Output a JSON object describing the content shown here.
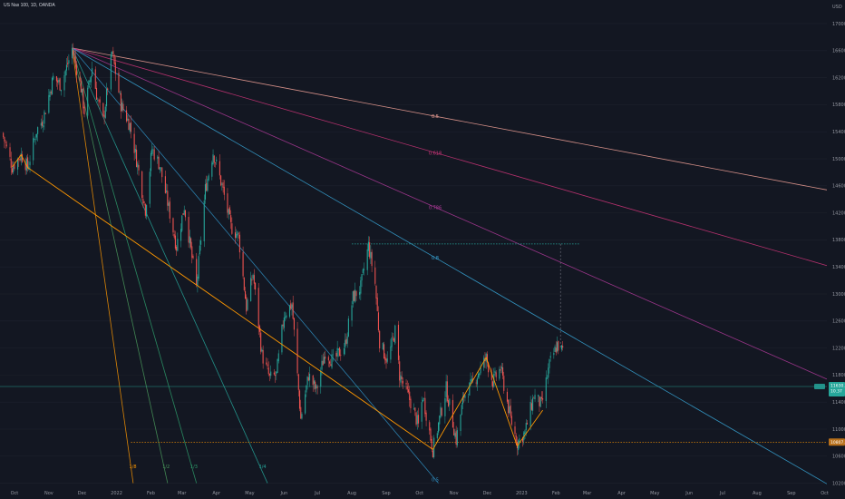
{
  "header": {
    "symbol_title": "US Nas 100, 1D, OANDA"
  },
  "currency": "USD",
  "colors": {
    "background": "#131722",
    "bull": "#26a69a",
    "bear": "#ef5350",
    "zigzag": "#ff9800",
    "price_tag": "#26a69a",
    "level_tag": "#b8701b",
    "grid": "#1e222d"
  },
  "price_tag": {
    "value": "11630.2",
    "sub": "10.37"
  },
  "level_tag": {
    "value": "10807.6"
  },
  "fan_labels": [
    "0.5",
    "0.618",
    "0.786",
    "0.8",
    "0.5",
    "1/4",
    "1/3",
    "1/2",
    "1/8"
  ],
  "chart_data": {
    "type": "candlestick",
    "title": "US Nas 100, 1D, OANDA",
    "y_axis": {
      "ticks": [
        17000,
        16600,
        16200,
        15800,
        15400,
        15000,
        14600,
        14200,
        13800,
        13400,
        13000,
        12600,
        12200,
        11800,
        11400,
        11000,
        10600,
        10200
      ],
      "labels": [
        "17000.0",
        "16600.0",
        "16200.0",
        "15800.0",
        "15400.0",
        "15000.0",
        "14600.0",
        "14200.0",
        "13800.0",
        "13400.0",
        "13000.0",
        "12600.0",
        "12200.0",
        "11800.0",
        "11400.0",
        "11000.0",
        "10600.0",
        "10200.0"
      ],
      "range": [
        10100,
        17350
      ],
      "unit": "USD"
    },
    "x_axis": {
      "labels": [
        "Oct",
        "Nov",
        "Dec",
        "2022",
        "Feb",
        "Mar",
        "Apr",
        "May",
        "Jun",
        "Jul",
        "Aug",
        "Sep",
        "Oct",
        "Nov",
        "Dec",
        "2023",
        "Feb",
        "Mar",
        "Apr",
        "May",
        "Jun",
        "Jul",
        "Aug",
        "Sep",
        "Oct"
      ],
      "range": [
        "2021-09-18",
        "2023-10-03"
      ]
    },
    "price_path": [
      [
        "2021-09-20",
        15380
      ],
      [
        "2021-09-29",
        14880
      ],
      [
        "2021-10-07",
        15060
      ],
      [
        "2021-10-13",
        14870
      ],
      [
        "2021-10-21",
        15420
      ],
      [
        "2021-10-27",
        15600
      ],
      [
        "2021-11-05",
        16200
      ],
      [
        "2021-11-12",
        16090
      ],
      [
        "2021-11-22",
        16620
      ],
      [
        "2021-11-30",
        16050
      ],
      [
        "2021-12-03",
        15700
      ],
      [
        "2021-12-10",
        16350
      ],
      [
        "2021-12-15",
        15860
      ],
      [
        "2021-12-20",
        15570
      ],
      [
        "2021-12-28",
        16570
      ],
      [
        "2022-01-05",
        15800
      ],
      [
        "2022-01-13",
        15500
      ],
      [
        "2022-01-20",
        14900
      ],
      [
        "2022-01-27",
        14250
      ],
      [
        "2022-02-02",
        15150
      ],
      [
        "2022-02-09",
        14900
      ],
      [
        "2022-02-16",
        14350
      ],
      [
        "2022-02-24",
        13700
      ],
      [
        "2022-03-03",
        14300
      ],
      [
        "2022-03-14",
        13100
      ],
      [
        "2022-03-22",
        14550
      ],
      [
        "2022-03-29",
        15100
      ],
      [
        "2022-04-06",
        14600
      ],
      [
        "2022-04-14",
        14000
      ],
      [
        "2022-04-21",
        13850
      ],
      [
        "2022-04-28",
        12800
      ],
      [
        "2022-05-04",
        13300
      ],
      [
        "2022-05-12",
        12100
      ],
      [
        "2022-05-19",
        11750
      ],
      [
        "2022-05-25",
        11800
      ],
      [
        "2022-06-01",
        12700
      ],
      [
        "2022-06-08",
        12850
      ],
      [
        "2022-06-16",
        11150
      ],
      [
        "2022-06-23",
        11800
      ],
      [
        "2022-06-30",
        11570
      ],
      [
        "2022-07-08",
        12150
      ],
      [
        "2022-07-15",
        12000
      ],
      [
        "2022-07-26",
        12250
      ],
      [
        "2022-08-02",
        12950
      ],
      [
        "2022-08-09",
        13100
      ],
      [
        "2022-08-16",
        13720
      ],
      [
        "2022-08-22",
        13150
      ],
      [
        "2022-08-26",
        12300
      ],
      [
        "2022-09-02",
        12000
      ],
      [
        "2022-09-09",
        12450
      ],
      [
        "2022-09-13",
        11800
      ],
      [
        "2022-09-23",
        11400
      ],
      [
        "2022-09-30",
        11050
      ],
      [
        "2022-10-04",
        11500
      ],
      [
        "2022-10-13",
        10690
      ],
      [
        "2022-10-19",
        11150
      ],
      [
        "2022-10-25",
        11600
      ],
      [
        "2022-11-03",
        10840
      ],
      [
        "2022-11-10",
        11500
      ],
      [
        "2022-11-17",
        11650
      ],
      [
        "2022-11-30",
        12050
      ],
      [
        "2022-12-06",
        11700
      ],
      [
        "2022-12-13",
        11900
      ],
      [
        "2022-12-22",
        11150
      ],
      [
        "2022-12-28",
        10800
      ],
      [
        "2023-01-04",
        10950
      ],
      [
        "2023-01-12",
        11500
      ],
      [
        "2023-01-19",
        11350
      ],
      [
        "2023-01-26",
        11950
      ],
      [
        "2023-02-02",
        12250
      ],
      [
        "2023-02-07",
        12150
      ]
    ],
    "zigzag": [
      [
        "2021-09-29",
        14880
      ],
      [
        "2021-10-07",
        15060
      ],
      [
        "2021-10-13",
        14870
      ],
      [
        "2022-10-13",
        10700
      ],
      [
        "2022-11-30",
        12060
      ],
      [
        "2022-12-28",
        10750
      ],
      [
        "2023-01-20",
        11280
      ]
    ],
    "horizontal_levels": [
      {
        "price": 10807.6,
        "from": "2022-01-14",
        "to": "2023-10-03",
        "style": "dotted",
        "color": "#ff9800"
      },
      {
        "price": 13740,
        "from": "2022-08-01",
        "to": "2023-02-22",
        "style": "dotted",
        "color": "#26a69a"
      },
      {
        "price": 11630.2,
        "from": "2021-09-18",
        "to": "2023-10-03",
        "style": "solid",
        "color": "#26a69a"
      }
    ],
    "gann_fan": {
      "origin": [
        "2021-11-22",
        16640
      ],
      "lines": [
        {
          "label": "0.5",
          "end": [
            "2023-10-03",
            14540
          ],
          "color": "#f7a59a"
        },
        {
          "label": "0.618",
          "end": [
            "2023-10-03",
            13420
          ],
          "color": "#d1357a"
        },
        {
          "label": "0.786",
          "end": [
            "2023-10-03",
            11740
          ],
          "color": "#b03a9a"
        },
        {
          "label": "0.8",
          "end": [
            "2023-10-03",
            10190
          ],
          "color": "#38a7d8"
        },
        {
          "label": "0.5",
          "end": [
            "2022-10-18",
            10200
          ],
          "color": "#2f8fc2"
        },
        {
          "label": "1/2",
          "end": [
            "2022-05-17",
            10200
          ],
          "color": "#26a69a"
        },
        {
          "label": "1/3",
          "end": [
            "2022-03-14",
            10200
          ],
          "color": "#2e9e6c"
        },
        {
          "label": "1/4",
          "end": [
            "2022-02-16",
            10200
          ],
          "color": "#4a9a5c"
        },
        {
          "label": "1/8",
          "end": [
            "2022-01-16",
            10200
          ],
          "color": "#ff9800"
        }
      ]
    },
    "projection": {
      "date": "2023-02-05",
      "from": 13740,
      "to": 12190,
      "style": "dashed"
    }
  }
}
